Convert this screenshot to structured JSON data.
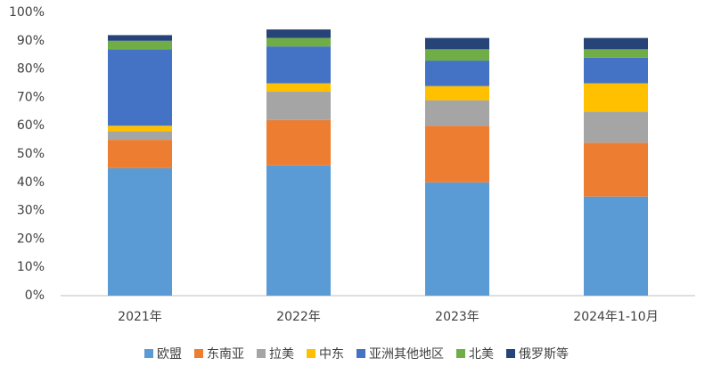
{
  "chart_data": {
    "type": "stacked_bar",
    "categories": [
      "2021年",
      "2022年",
      "2023年",
      "2024年1-10月"
    ],
    "series": [
      {
        "name": "欧盟",
        "color": "#5b9bd5",
        "values": [
          45,
          46,
          40,
          35
        ]
      },
      {
        "name": "东南亚",
        "color": "#ed7d31",
        "values": [
          10,
          16,
          20,
          19
        ]
      },
      {
        "name": "拉美",
        "color": "#a5a5a5",
        "values": [
          3,
          10,
          9,
          11
        ]
      },
      {
        "name": "中东",
        "color": "#ffc000",
        "values": [
          2,
          3,
          5,
          10
        ]
      },
      {
        "name": "亚洲其他地区",
        "color": "#4472c4",
        "values": [
          27,
          13,
          9,
          9
        ]
      },
      {
        "name": "北美",
        "color": "#70ad47",
        "values": [
          3,
          3,
          4,
          3
        ]
      },
      {
        "name": "俄罗斯等",
        "color": "#264478",
        "values": [
          2,
          3,
          4,
          4
        ]
      }
    ],
    "ylim": [
      0,
      100
    ],
    "yticks": [
      {
        "value": 0,
        "label": "0%"
      },
      {
        "value": 10,
        "label": "10%"
      },
      {
        "value": 20,
        "label": "20%"
      },
      {
        "value": 30,
        "label": "30%"
      },
      {
        "value": 40,
        "label": "40%"
      },
      {
        "value": 50,
        "label": "50%"
      },
      {
        "value": 60,
        "label": "60%"
      },
      {
        "value": 70,
        "label": "70%"
      },
      {
        "value": 80,
        "label": "80%"
      },
      {
        "value": 90,
        "label": "90%"
      },
      {
        "value": 100,
        "label": "100%"
      }
    ],
    "grid": false,
    "legend": "bottom"
  }
}
